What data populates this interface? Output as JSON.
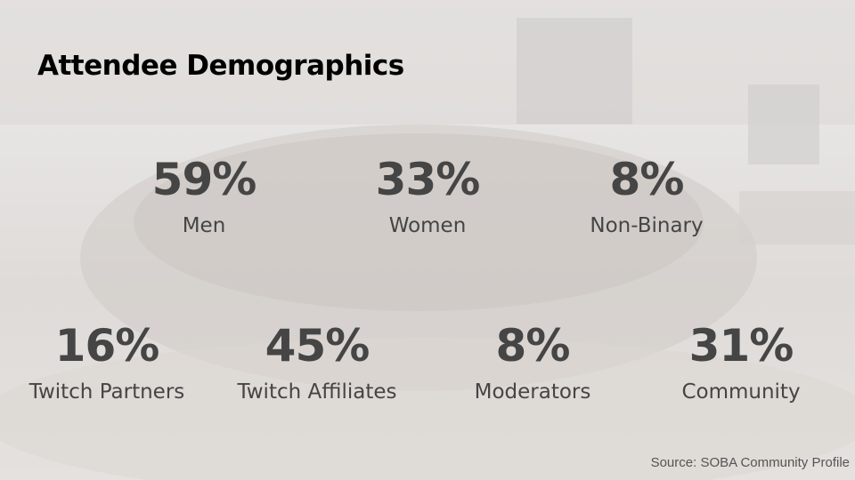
{
  "header": {
    "title": "Attendee Demographics"
  },
  "rows": [
    [
      {
        "value": "59%",
        "label": "Men"
      },
      {
        "value": "33%",
        "label": "Women"
      },
      {
        "value": "8%",
        "label": "Non-Binary"
      }
    ],
    [
      {
        "value": "16%",
        "label": "Twitch Partners"
      },
      {
        "value": "45%",
        "label": "Twitch Affiliates"
      },
      {
        "value": "8%",
        "label": "Moderators"
      },
      {
        "value": "31%",
        "label": "Community"
      }
    ]
  ],
  "footer": {
    "source": "Source: SOBA Community Profile"
  }
}
